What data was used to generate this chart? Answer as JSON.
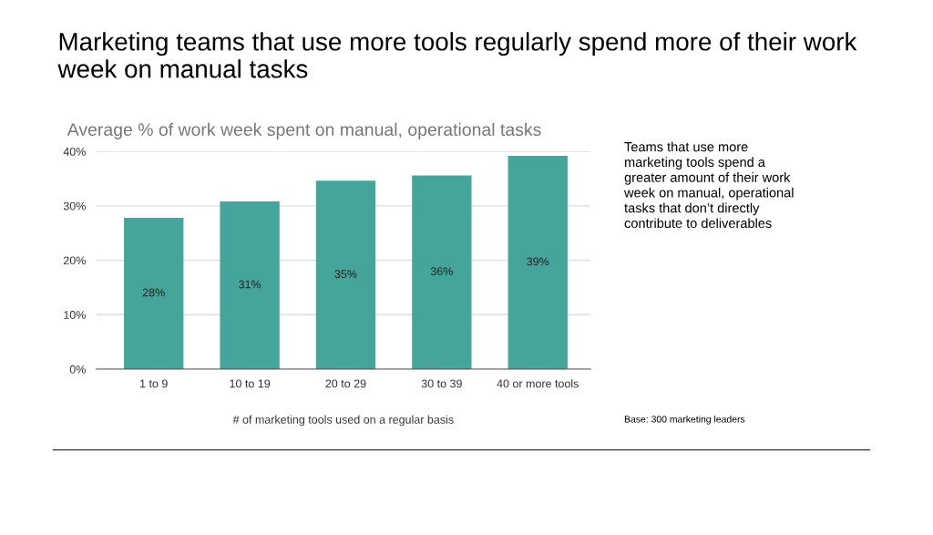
{
  "chart_data": {
    "type": "bar",
    "title": "Marketing teams that use more tools regularly spend more of their work week on manual tasks",
    "subtitle": "Average % of work week spent on manual, operational tasks",
    "xlabel": "# of marketing tools used on a regular basis",
    "categories": [
      "1 to 9",
      "10 to 19",
      "20 to 29",
      "30 to 39",
      "40 or more tools"
    ],
    "values": [
      27.8,
      30.8,
      34.6,
      35.6,
      39.2
    ],
    "value_labels": [
      "28%",
      "31%",
      "35%",
      "36%",
      "39%"
    ],
    "color": "#45a59a",
    "ylim": [
      0,
      40
    ],
    "yticks": [
      {
        "value": 0,
        "label": "0%"
      },
      {
        "value": 10,
        "label": "10%"
      },
      {
        "value": 20,
        "label": "20%"
      },
      {
        "value": 30,
        "label": "30%"
      },
      {
        "value": 40,
        "label": "40%"
      }
    ],
    "grid": "y",
    "legend": false,
    "annotations": [
      "Teams that use more marketing tools spend a greater amount of their work week on manual, operational tasks that don’t directly contribute to deliverables",
      "Base: 300 marketing leaders"
    ]
  }
}
